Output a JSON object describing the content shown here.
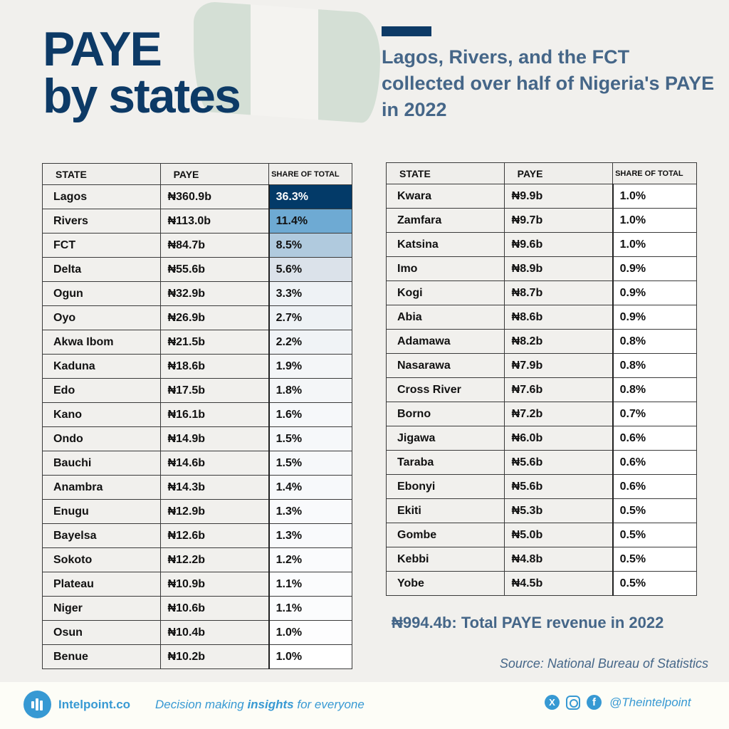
{
  "header": {
    "title_line1": "PAYE",
    "title_line2": "by states",
    "subtitle": "Lagos, Rivers, and the FCT collected over half of Nigeria's PAYE in 2022"
  },
  "table_headers": {
    "state": "STATE",
    "paye": "PAYE",
    "share": "SHARE OF TOTAL"
  },
  "colors": {
    "title": "#0d3a66",
    "subtitle": "#456688",
    "brand": "#3799d3",
    "share_scale": [
      "#033a68",
      "#6eaad3",
      "#b0cade",
      "#dbe2ea",
      "#eef2f5",
      "#f6f8fa",
      "#ffffff"
    ]
  },
  "left_table": {
    "rows": [
      {
        "state": "Lagos",
        "paye": "₦360.9b",
        "share": "36.3%",
        "bg": "#033a68",
        "fg": "#ffffff"
      },
      {
        "state": "Rivers",
        "paye": "₦113.0b",
        "share": "11.4%",
        "bg": "#6eaad3",
        "fg": "#111111"
      },
      {
        "state": "FCT",
        "paye": "₦84.7b",
        "share": "8.5%",
        "bg": "#b0cade",
        "fg": "#111111"
      },
      {
        "state": "Delta",
        "paye": "₦55.6b",
        "share": "5.6%",
        "bg": "#dbe2ea",
        "fg": "#111111"
      },
      {
        "state": "Ogun",
        "paye": "₦32.9b",
        "share": "3.3%",
        "bg": "#eef2f5",
        "fg": "#111111"
      },
      {
        "state": "Oyo",
        "paye": "₦26.9b",
        "share": "2.7%",
        "bg": "#eef2f5",
        "fg": "#111111"
      },
      {
        "state": "Akwa Ibom",
        "paye": "₦21.5b",
        "share": "2.2%",
        "bg": "#f0f3f6",
        "fg": "#111111"
      },
      {
        "state": "Kaduna",
        "paye": "₦18.6b",
        "share": "1.9%",
        "bg": "#f4f6f8",
        "fg": "#111111"
      },
      {
        "state": "Edo",
        "paye": "₦17.5b",
        "share": "1.8%",
        "bg": "#f4f6f8",
        "fg": "#111111"
      },
      {
        "state": "Kano",
        "paye": "₦16.1b",
        "share": "1.6%",
        "bg": "#f6f8fa",
        "fg": "#111111"
      },
      {
        "state": "Ondo",
        "paye": "₦14.9b",
        "share": "1.5%",
        "bg": "#f6f8fa",
        "fg": "#111111"
      },
      {
        "state": "Bauchi",
        "paye": "₦14.6b",
        "share": "1.5%",
        "bg": "#f6f8fa",
        "fg": "#111111"
      },
      {
        "state": "Anambra",
        "paye": "₦14.3b",
        "share": "1.4%",
        "bg": "#f7f9fb",
        "fg": "#111111"
      },
      {
        "state": "Enugu",
        "paye": "₦12.9b",
        "share": "1.3%",
        "bg": "#f9fafc",
        "fg": "#111111"
      },
      {
        "state": "Bayelsa",
        "paye": "₦12.6b",
        "share": "1.3%",
        "bg": "#f9fafc",
        "fg": "#111111"
      },
      {
        "state": "Sokoto",
        "paye": "₦12.2b",
        "share": "1.2%",
        "bg": "#fafbfd",
        "fg": "#111111"
      },
      {
        "state": "Plateau",
        "paye": "₦10.9b",
        "share": "1.1%",
        "bg": "#fbfcfd",
        "fg": "#111111"
      },
      {
        "state": "Niger",
        "paye": "₦10.6b",
        "share": "1.1%",
        "bg": "#fbfcfd",
        "fg": "#111111"
      },
      {
        "state": "Osun",
        "paye": "₦10.4b",
        "share": "1.0%",
        "bg": "#fdfdfe",
        "fg": "#111111"
      },
      {
        "state": "Benue",
        "paye": "₦10.2b",
        "share": "1.0%",
        "bg": "#ffffff",
        "fg": "#111111"
      }
    ]
  },
  "right_table": {
    "rows": [
      {
        "state": "Kwara",
        "paye": "₦9.9b",
        "share": "1.0%"
      },
      {
        "state": "Zamfara",
        "paye": "₦9.7b",
        "share": "1.0%"
      },
      {
        "state": "Katsina",
        "paye": "₦9.6b",
        "share": "1.0%"
      },
      {
        "state": "Imo",
        "paye": "₦8.9b",
        "share": "0.9%"
      },
      {
        "state": "Kogi",
        "paye": "₦8.7b",
        "share": "0.9%"
      },
      {
        "state": "Abia",
        "paye": "₦8.6b",
        "share": "0.9%"
      },
      {
        "state": "Adamawa",
        "paye": "₦8.2b",
        "share": "0.8%"
      },
      {
        "state": "Nasarawa",
        "paye": "₦7.9b",
        "share": "0.8%"
      },
      {
        "state": "Cross River",
        "paye": "₦7.6b",
        "share": "0.8%"
      },
      {
        "state": "Borno",
        "paye": "₦7.2b",
        "share": "0.7%"
      },
      {
        "state": "Jigawa",
        "paye": "₦6.0b",
        "share": "0.6%"
      },
      {
        "state": "Taraba",
        "paye": "₦5.6b",
        "share": "0.6%"
      },
      {
        "state": "Ebonyi",
        "paye": "₦5.6b",
        "share": "0.6%"
      },
      {
        "state": "Ekiti",
        "paye": "₦5.3b",
        "share": "0.5%"
      },
      {
        "state": "Gombe",
        "paye": "₦5.0b",
        "share": "0.5%"
      },
      {
        "state": "Kebbi",
        "paye": "₦4.8b",
        "share": "0.5%"
      },
      {
        "state": "Yobe",
        "paye": "₦4.5b",
        "share": "0.5%"
      }
    ]
  },
  "summary": {
    "total": "₦994.4b: Total PAYE revenue in 2022",
    "source": "Source: National Bureau of Statistics"
  },
  "footer": {
    "brand": "Intelpoint.co",
    "tagline_pre": "Decision making ",
    "tagline_bold": "insights",
    "tagline_post": " for everyone",
    "x_icon_label": "X",
    "handle": "@Theintelpoint"
  },
  "chart_data": {
    "type": "table",
    "title": "PAYE by states",
    "subtitle": "Lagos, Rivers, and the FCT collected over half of Nigeria's PAYE in 2022",
    "columns": [
      "STATE",
      "PAYE",
      "SHARE OF TOTAL"
    ],
    "unit": "₦ billion",
    "categories": [
      "Lagos",
      "Rivers",
      "FCT",
      "Delta",
      "Ogun",
      "Oyo",
      "Akwa Ibom",
      "Kaduna",
      "Edo",
      "Kano",
      "Ondo",
      "Bauchi",
      "Anambra",
      "Enugu",
      "Bayelsa",
      "Sokoto",
      "Plateau",
      "Niger",
      "Osun",
      "Benue",
      "Kwara",
      "Zamfara",
      "Katsina",
      "Imo",
      "Kogi",
      "Abia",
      "Adamawa",
      "Nasarawa",
      "Cross River",
      "Borno",
      "Jigawa",
      "Taraba",
      "Ebonyi",
      "Ekiti",
      "Gombe",
      "Kebbi",
      "Yobe"
    ],
    "series": [
      {
        "name": "PAYE (₦b)",
        "values": [
          360.9,
          113.0,
          84.7,
          55.6,
          32.9,
          26.9,
          21.5,
          18.6,
          17.5,
          16.1,
          14.9,
          14.6,
          14.3,
          12.9,
          12.6,
          12.2,
          10.9,
          10.6,
          10.4,
          10.2,
          9.9,
          9.7,
          9.6,
          8.9,
          8.7,
          8.6,
          8.2,
          7.9,
          7.6,
          7.2,
          6.0,
          5.6,
          5.6,
          5.3,
          5.0,
          4.8,
          4.5
        ]
      },
      {
        "name": "Share of total (%)",
        "values": [
          36.3,
          11.4,
          8.5,
          5.6,
          3.3,
          2.7,
          2.2,
          1.9,
          1.8,
          1.6,
          1.5,
          1.5,
          1.4,
          1.3,
          1.3,
          1.2,
          1.1,
          1.1,
          1.0,
          1.0,
          1.0,
          1.0,
          1.0,
          0.9,
          0.9,
          0.9,
          0.8,
          0.8,
          0.8,
          0.7,
          0.6,
          0.6,
          0.6,
          0.5,
          0.5,
          0.5,
          0.5
        ]
      }
    ],
    "total": 994.4,
    "year": 2022,
    "source": "National Bureau of Statistics"
  }
}
